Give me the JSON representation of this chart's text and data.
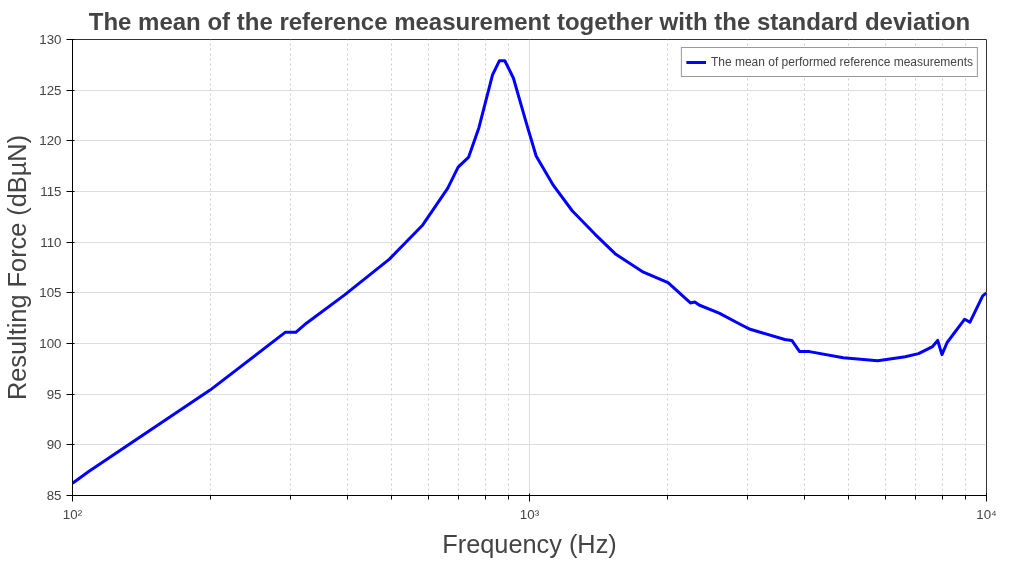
{
  "chart_data": {
    "type": "line",
    "title": "The mean of the reference measurement together with the standard deviation",
    "xlabel": "Frequency (Hz)",
    "ylabel": "Resulting Force (dBµN)",
    "log": "x",
    "grid": true,
    "legend": "top right",
    "line_style": "solid",
    "marker": "none",
    "xlim": [
      100,
      10000
    ],
    "xticks": [
      {
        "value": 100,
        "label": "10²"
      },
      {
        "value": 1000,
        "label": "10³"
      },
      {
        "value": 10000,
        "label": "10⁴"
      }
    ],
    "ylim": [
      85,
      130
    ],
    "yticks": [
      85,
      90,
      95,
      100,
      105,
      110,
      115,
      120,
      125,
      130
    ],
    "series": [
      {
        "name": "The mean of performed reference measurements",
        "color": "#0000ff",
        "x": [
          100,
          108.7,
          200,
          292,
          308,
          325,
          394,
          493,
          584,
          662,
          698,
          736,
          775,
          830,
          859,
          883,
          922,
          985,
          1034,
          1128,
          1240,
          1390,
          1545,
          1765,
          2010,
          2250,
          2300,
          2350,
          2600,
          2890,
          3040,
          3620,
          3750,
          3900,
          4100,
          4860,
          5780,
          6640,
          7100,
          7620,
          7820,
          7990,
          8200,
          8960,
          9200,
          9810,
          10000
        ],
        "values": [
          86.2,
          87.4,
          95.4,
          101.1,
          101.1,
          102.0,
          104.8,
          108.3,
          111.7,
          115.3,
          117.4,
          118.4,
          121.3,
          126.5,
          127.9,
          127.9,
          126.2,
          121.7,
          118.5,
          115.6,
          113.1,
          110.8,
          108.8,
          107.1,
          106.0,
          104.0,
          104.1,
          103.8,
          103.0,
          101.9,
          101.4,
          100.4,
          100.3,
          99.2,
          99.2,
          98.6,
          98.3,
          98.7,
          99.0,
          99.7,
          100.3,
          98.9,
          100.1,
          102.4,
          102.1,
          104.7,
          105.0
        ]
      }
    ]
  }
}
